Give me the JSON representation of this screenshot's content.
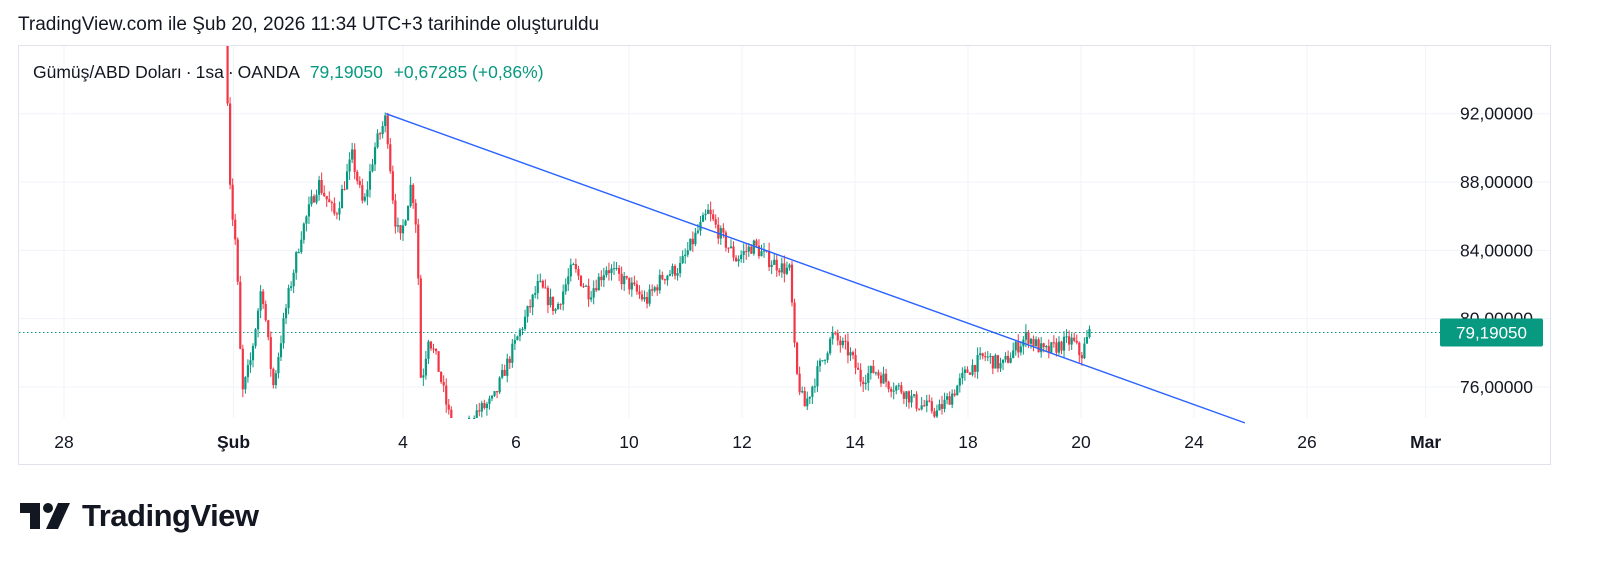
{
  "header": {
    "caption": "TradingView.com ile Şub 20, 2026 11:34 UTC+3 tarihinde oluşturuldu"
  },
  "legend": {
    "symbol": "Gümüş/ABD Doları",
    "interval": "1sa",
    "exchange": "OANDA",
    "last": "79,19050",
    "change": "+0,67285 (+0,86%)"
  },
  "brand": {
    "name": "TradingView",
    "logo_icon": "tradingview-logo-icon"
  },
  "colors": {
    "up": "#089981",
    "down": "#f23645",
    "trendline": "#2962ff",
    "grid": "#f0f3fa",
    "badge": "#089981"
  },
  "chart_data": {
    "type": "candlestick",
    "instrument": "Gümüş/ABD Doları",
    "interval": "1sa",
    "source": "OANDA",
    "ylim": [
      74.0,
      92.7
    ],
    "xlim": [
      "2026-01-28",
      "2026-03-01"
    ],
    "y_ticks": [
      {
        "value": 92,
        "label": "92,00000"
      },
      {
        "value": 88,
        "label": "88,00000"
      },
      {
        "value": 84,
        "label": "84,00000"
      },
      {
        "value": 80,
        "label": "80,00000"
      },
      {
        "value": 76,
        "label": "76,00000"
      }
    ],
    "x_ticks": [
      {
        "day": 0,
        "label": "28"
      },
      {
        "day": 3,
        "label": "Şub"
      },
      {
        "day": 6,
        "label": "4"
      },
      {
        "day": 8,
        "label": "6"
      },
      {
        "day": 10,
        "label": "10"
      },
      {
        "day": 12,
        "label": "12"
      },
      {
        "day": 14,
        "label": "14"
      },
      {
        "day": 16,
        "label": "18"
      },
      {
        "day": 18,
        "label": "20"
      },
      {
        "day": 20,
        "label": "24"
      },
      {
        "day": 22,
        "label": "26"
      },
      {
        "day": 24.1,
        "label": "Mar"
      }
    ],
    "last_price": {
      "value": 79.1905,
      "label": "79,19050"
    },
    "trendline": {
      "from": {
        "day": 5.7,
        "price": 92.0
      },
      "to": {
        "day": 20.9,
        "price": 73.9
      }
    },
    "anchors": [
      [
        2.85,
        98.0
      ],
      [
        2.95,
        87.0
      ],
      [
        3.05,
        84.0
      ],
      [
        3.15,
        75.5
      ],
      [
        3.3,
        77.5
      ],
      [
        3.5,
        82.0
      ],
      [
        3.7,
        76.0
      ],
      [
        3.95,
        81.0
      ],
      [
        4.2,
        85.0
      ],
      [
        4.5,
        88.0
      ],
      [
        4.8,
        86.0
      ],
      [
        5.1,
        89.5
      ],
      [
        5.3,
        86.5
      ],
      [
        5.5,
        90.0
      ],
      [
        5.7,
        91.8
      ],
      [
        5.85,
        86.0
      ],
      [
        5.95,
        84.5
      ],
      [
        6.15,
        88.0
      ],
      [
        6.25,
        85.0
      ],
      [
        6.32,
        76.0
      ],
      [
        6.45,
        79.0
      ],
      [
        6.6,
        77.5
      ],
      [
        6.8,
        74.5
      ],
      [
        7.0,
        72.5
      ],
      [
        7.3,
        74.5
      ],
      [
        7.6,
        75.2
      ],
      [
        7.8,
        77.0
      ],
      [
        8.1,
        79.5
      ],
      [
        8.4,
        82.0
      ],
      [
        8.7,
        80.5
      ],
      [
        9.0,
        83.0
      ],
      [
        9.3,
        81.5
      ],
      [
        9.6,
        83.0
      ],
      [
        10.0,
        82.0
      ],
      [
        10.3,
        81.0
      ],
      [
        10.6,
        82.5
      ],
      [
        10.9,
        83.0
      ],
      [
        11.2,
        85.0
      ],
      [
        11.4,
        86.2
      ],
      [
        11.6,
        85.0
      ],
      [
        11.9,
        83.5
      ],
      [
        12.2,
        84.3
      ],
      [
        12.45,
        83.5
      ],
      [
        12.7,
        83.0
      ],
      [
        12.85,
        82.8
      ],
      [
        12.95,
        77.0
      ],
      [
        13.1,
        74.8
      ],
      [
        13.35,
        77.0
      ],
      [
        13.6,
        79.0
      ],
      [
        13.9,
        78.0
      ],
      [
        14.1,
        76.5
      ],
      [
        14.35,
        77.0
      ],
      [
        14.6,
        76.2
      ],
      [
        14.85,
        75.8
      ],
      [
        15.1,
        75.0
      ],
      [
        15.3,
        74.8
      ],
      [
        15.45,
        74.5
      ],
      [
        15.7,
        75.5
      ],
      [
        16.0,
        77.0
      ],
      [
        16.3,
        77.8
      ],
      [
        16.6,
        77.2
      ],
      [
        16.85,
        78.3
      ],
      [
        17.05,
        79.0
      ],
      [
        17.35,
        78.0
      ],
      [
        17.65,
        78.5
      ],
      [
        17.85,
        78.7
      ],
      [
        18.0,
        77.8
      ],
      [
        18.15,
        79.19
      ]
    ]
  }
}
